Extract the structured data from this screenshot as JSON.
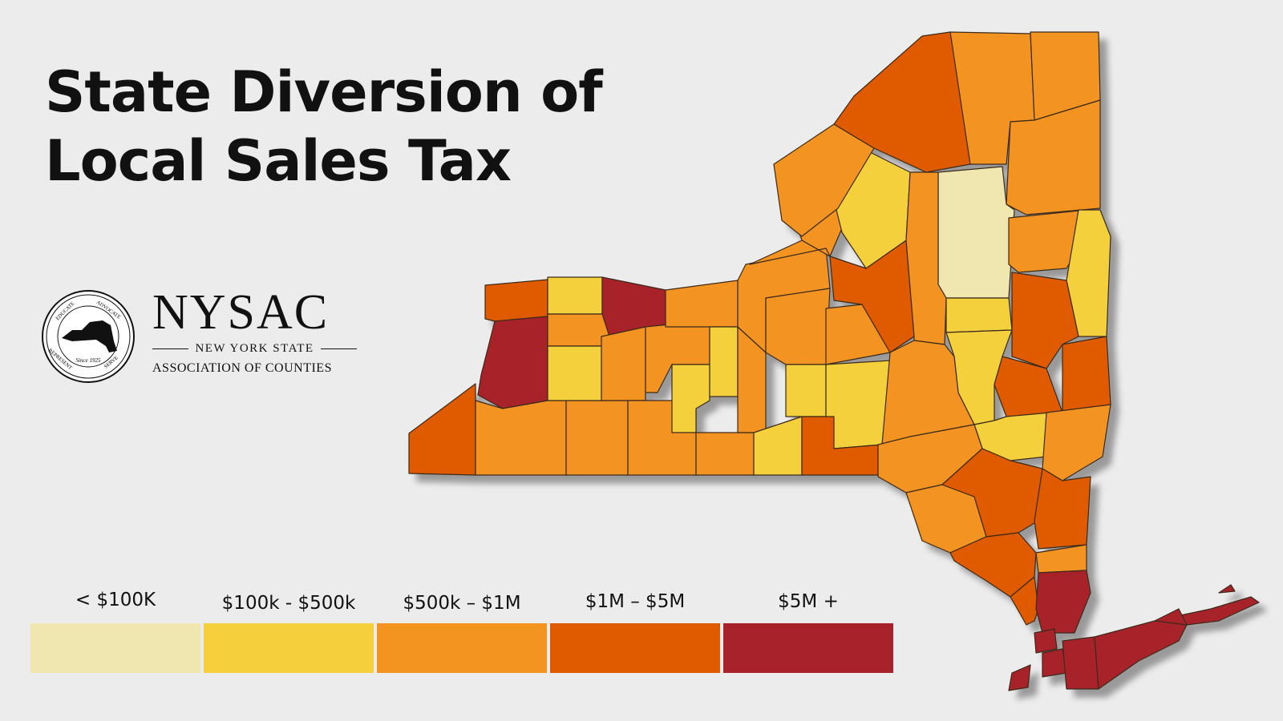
{
  "title": {
    "line1": "State Diversion of",
    "line2": "Local Sales Tax"
  },
  "logo": {
    "name": "NYSAC",
    "subtitle": "NEW YORK STATE",
    "org": "ASSOCIATION OF COUNTIES",
    "seal_top_left": "EDUCATE",
    "seal_top_right": "ADVOCATE",
    "seal_bottom_left": "REPRESENT",
    "seal_bottom_right": "SERVE",
    "seal_center": "Since 1925"
  },
  "legend": [
    {
      "label": "< $100K",
      "color": "#f0e6b0"
    },
    {
      "label": "$100k - $500k",
      "color": "#f5d03c"
    },
    {
      "label": "$500k – $1M",
      "color": "#f39320"
    },
    {
      "label": "$1M – $5M",
      "color": "#e05a00"
    },
    {
      "label": "$5M +",
      "color": "#a8222b"
    }
  ],
  "map": {
    "state": "New York",
    "class_colors": {
      "c1": "#f0e6b0",
      "c2": "#f5d03c",
      "c3": "#f39320",
      "c4": "#e05a00",
      "c5": "#a8222b"
    },
    "shading": "counties shaded by dollar amount class"
  }
}
